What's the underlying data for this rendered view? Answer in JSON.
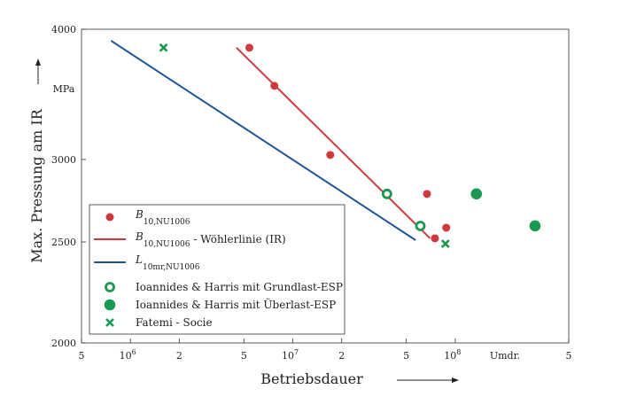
{
  "chart_data": {
    "type": "scatter",
    "xlabel": "Betriebsdauer",
    "ylabel": "Max. Pressung am IR",
    "yunit": "MPa",
    "xunit": "Umdr.",
    "x_scale": "log",
    "y_scale": "log",
    "xlim": [
      500000,
      500000000
    ],
    "ylim": [
      2000,
      4000
    ],
    "x_ticks": [
      {
        "value": 500000,
        "label": "5"
      },
      {
        "value": 1000000,
        "label": "10",
        "sup": "6"
      },
      {
        "value": 2000000,
        "label": "2"
      },
      {
        "value": 5000000,
        "label": "5"
      },
      {
        "value": 10000000,
        "label": "10",
        "sup": "7"
      },
      {
        "value": 20000000,
        "label": "2"
      },
      {
        "value": 50000000,
        "label": "5"
      },
      {
        "value": 100000000,
        "label": "10",
        "sup": "8"
      },
      {
        "value": 500000000,
        "label": "5"
      }
    ],
    "y_ticks": [
      {
        "value": 4000,
        "label": "4000"
      },
      {
        "value": 3000,
        "label": "3000"
      },
      {
        "value": 2500,
        "label": "2500"
      },
      {
        "value": 2000,
        "label": "2000"
      }
    ],
    "grid": false,
    "legend_position": "bottom-left",
    "series": [
      {
        "name": "B10,NU1006",
        "legend_label": "B",
        "legend_sub": "10,NU1006",
        "legend_suffix": "",
        "kind": "points",
        "marker": "dot",
        "color": "#d0393b",
        "x": [
          5400000,
          7700000,
          17000000,
          67000000,
          75000000,
          88000000
        ],
        "y": [
          3840,
          3530,
          3030,
          2780,
          2520,
          2580
        ]
      },
      {
        "name": "B10,NU1006 - Wöhlerlinie (IR)",
        "legend_label": "B",
        "legend_sub": "10,NU1006",
        "legend_suffix": " - Wöhlerlinie (IR)",
        "kind": "line",
        "color": "#d0393b",
        "x": [
          4500000,
          70000000
        ],
        "y": [
          3840,
          2520
        ]
      },
      {
        "name": "L10mr,NU1006",
        "legend_label": "L",
        "legend_sub": "10mr,NU1006",
        "legend_suffix": "",
        "kind": "line",
        "color": "#1f5596",
        "x": [
          760000,
          57000000
        ],
        "y": [
          3900,
          2510
        ]
      },
      {
        "name": "Ioannides & Harris mit Grundlast-ESP",
        "legend_label": "Ioannides & Harris mit Grundlast-ESP",
        "kind": "points",
        "marker": "ring",
        "color": "#1a9950",
        "x": [
          38000000,
          61000000
        ],
        "y": [
          2780,
          2590
        ]
      },
      {
        "name": "Ioannides & Harris mit Überlast-ESP",
        "legend_label": "Ioannides & Harris mit Überlast-ESP",
        "kind": "points",
        "marker": "bigdot",
        "color": "#1a9950",
        "x": [
          135000000,
          310000000
        ],
        "y": [
          2780,
          2590
        ]
      },
      {
        "name": "Fatemi - Socie",
        "legend_label": "Fatemi - Socie",
        "kind": "points",
        "marker": "cross",
        "color": "#1a9950",
        "x": [
          1600000,
          87000000
        ],
        "y": [
          3840,
          2490
        ]
      }
    ]
  }
}
